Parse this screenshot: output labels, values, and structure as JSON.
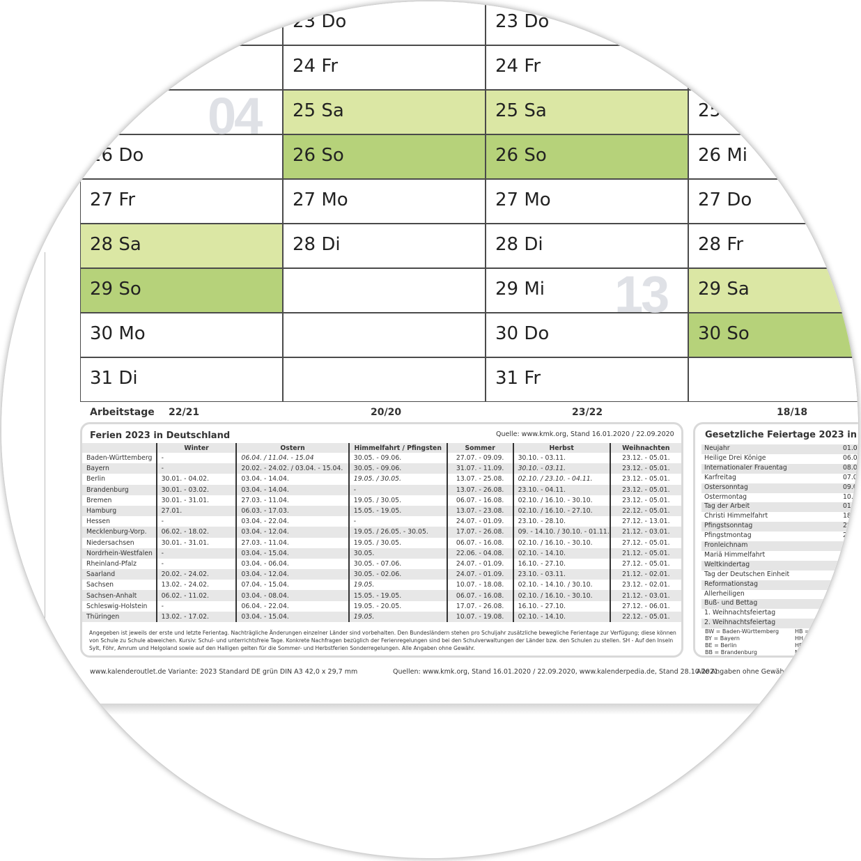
{
  "calendar": {
    "months": [
      {
        "cells": [
          {
            "l": "",
            "s": ""
          },
          {
            "l": "",
            "s": ""
          },
          {
            "l": "",
            "s": ""
          },
          {
            "l": "26 Do",
            "s": ""
          },
          {
            "l": "27 Fr",
            "s": ""
          },
          {
            "l": "28 Sa",
            "s": "sat"
          },
          {
            "l": "29 So",
            "s": "sun"
          },
          {
            "l": "30 Mo",
            "s": ""
          },
          {
            "l": "31 Di",
            "s": ""
          }
        ]
      },
      {
        "cells": [
          {
            "l": "23 Do",
            "s": ""
          },
          {
            "l": "24 Fr",
            "s": ""
          },
          {
            "l": "25 Sa",
            "s": "sat"
          },
          {
            "l": "26 So",
            "s": "sun"
          },
          {
            "l": "27 Mo",
            "s": ""
          },
          {
            "l": "28 Di",
            "s": ""
          },
          {
            "l": "",
            "s": ""
          },
          {
            "l": "",
            "s": ""
          },
          {
            "l": "",
            "s": ""
          }
        ]
      },
      {
        "cells": [
          {
            "l": "23 Do",
            "s": ""
          },
          {
            "l": "24 Fr",
            "s": ""
          },
          {
            "l": "25 Sa",
            "s": "sat"
          },
          {
            "l": "26 So",
            "s": "sun"
          },
          {
            "l": "27 Mo",
            "s": ""
          },
          {
            "l": "28 Di",
            "s": ""
          },
          {
            "l": "29 Mi",
            "s": ""
          },
          {
            "l": "30 Do",
            "s": ""
          },
          {
            "l": "31 Fr",
            "s": ""
          }
        ]
      },
      {
        "cells": [
          {
            "l": "",
            "s": ""
          },
          {
            "l": "",
            "s": ""
          },
          {
            "l": "25 Di",
            "s": ""
          },
          {
            "l": "26 Mi",
            "s": ""
          },
          {
            "l": "27 Do",
            "s": ""
          },
          {
            "l": "28 Fr",
            "s": ""
          },
          {
            "l": "29 Sa",
            "s": "sat"
          },
          {
            "l": "30 So",
            "s": "sun"
          },
          {
            "l": "",
            "s": ""
          }
        ]
      }
    ],
    "week_numbers": [
      "04",
      "13"
    ],
    "arbeitstage_label": "Arbeitstage",
    "arbeitstage": [
      "22/21",
      "20/20",
      "23/22",
      "18/18"
    ],
    "colors": {
      "saturday": "#dbe7a4",
      "sunday": "#b6d27a"
    }
  },
  "ferien": {
    "title": "Ferien 2023 in Deutschland",
    "source": "Quelle: www.kmk.org, Stand 16.01.2020 / 22.09.2020",
    "columns": [
      "",
      "Winter",
      "Ostern",
      "Himmelfahrt / Pfingsten",
      "Sommer",
      "Herbst",
      "Weihnachten"
    ],
    "rows": [
      [
        "Baden-Württemberg",
        "-",
        "06.04. / 11.04. - 15.04",
        "30.05. - 09.06.",
        "27.07. - 09.09.",
        "30.10. - 03.11.",
        "23.12. - 05.01."
      ],
      [
        "Bayern",
        "-",
        "20.02. - 24.02. / 03.04. - 15.04.",
        "30.05. - 09.06.",
        "31.07. - 11.09.",
        "30.10. - 03.11.",
        "23.12. - 05.01."
      ],
      [
        "Berlin",
        "30.01. - 04.02.",
        "03.04. - 14.04.",
        "19.05. / 30.05.",
        "13.07. - 25.08.",
        "02.10. / 23.10. - 04.11.",
        "23.12. - 05.01."
      ],
      [
        "Brandenburg",
        "30.01. - 03.02.",
        "03.04. - 14.04.",
        "-",
        "13.07. - 26.08.",
        "23.10. - 04.11.",
        "23.12. - 05.01."
      ],
      [
        "Bremen",
        "30.01. - 31.01.",
        "27.03. - 11.04.",
        "19.05. / 30.05.",
        "06.07. - 16.08.",
        "02.10. / 16.10. - 30.10.",
        "23.12. - 05.01."
      ],
      [
        "Hamburg",
        "27.01.",
        "06.03. - 17.03.",
        "15.05. - 19.05.",
        "13.07. - 23.08.",
        "02.10. / 16.10. - 27.10.",
        "22.12. - 05.01."
      ],
      [
        "Hessen",
        "-",
        "03.04. - 22.04.",
        "-",
        "24.07. - 01.09.",
        "23.10. - 28.10.",
        "27.12. - 13.01."
      ],
      [
        "Mecklenburg-Vorp.",
        "06.02. - 18.02.",
        "03.04. - 12.04.",
        "19.05. / 26.05. - 30.05.",
        "17.07. - 26.08.",
        "09. - 14.10. / 30.10. - 01.11.",
        "21.12. - 03.01."
      ],
      [
        "Niedersachsen",
        "30.01. - 31.01.",
        "27.03. - 11.04.",
        "19.05. / 30.05.",
        "06.07. - 16.08.",
        "02.10. / 16.10. - 30.10.",
        "27.12. - 05.01."
      ],
      [
        "Nordrhein-Westfalen",
        "-",
        "03.04. - 15.04.",
        "30.05.",
        "22.06. - 04.08.",
        "02.10. - 14.10.",
        "21.12. - 05.01."
      ],
      [
        "Rheinland-Pfalz",
        "-",
        "03.04. - 06.04.",
        "30.05. - 07.06.",
        "24.07. - 01.09.",
        "16.10. - 27.10.",
        "27.12. - 05.01."
      ],
      [
        "Saarland",
        "20.02. - 24.02.",
        "03.04. - 12.04.",
        "30.05. - 02.06.",
        "24.07. - 01.09.",
        "23.10. - 03.11.",
        "21.12. - 02.01."
      ],
      [
        "Sachsen",
        "13.02. - 24.02.",
        "07.04. - 15.04.",
        "19.05.",
        "10.07. - 18.08.",
        "02.10. - 14.10. / 30.10.",
        "23.12. - 02.01."
      ],
      [
        "Sachsen-Anhalt",
        "06.02. - 11.02.",
        "03.04. - 08.04.",
        "15.05. - 19.05.",
        "06.07. - 16.08.",
        "02.10. / 16.10. - 30.10.",
        "21.12. - 03.01."
      ],
      [
        "Schleswig-Holstein",
        "-",
        "06.04. - 22.04.",
        "19.05. - 20.05.",
        "17.07. - 26.08.",
        "16.10. - 27.10.",
        "27.12. - 06.01."
      ],
      [
        "Thüringen",
        "13.02. - 17.02.",
        "03.04. - 15.04.",
        "19.05.",
        "10.07. - 19.08.",
        "02.10. - 14.10.",
        "22.12. - 05.01."
      ]
    ],
    "note": "Angegeben ist jeweils der erste und letzte Ferientag. Nachträgliche Änderungen einzelner Länder sind vorbehalten. Den Bundesländern stehen pro Schuljahr zusätzliche bewegliche Ferientage zur Verfügung; diese können von Schule zu Schule abweichen. Kursiv: Schul- und unterrichtsfreie Tage. Konkrete Nachfragen bezüglich der Ferienregelungen sind bei den Schulverwaltungen der Länder bzw. den Schulen zu stellen. SH - Auf den Inseln Sylt, Föhr, Amrum und Helgoland sowie auf den Halligen gelten für die Sommer- und Herbstferien Sonderregelungen. Alle Angaben ohne Gewähr."
  },
  "feiertage": {
    "title": "Gesetzliche Feiertage 2023 in Deutschland",
    "items": [
      {
        "name": "Neujahr",
        "date": "01.01."
      },
      {
        "name": "Heilige Drei Könige",
        "date": "06.01."
      },
      {
        "name": "Internationaler Frauentag",
        "date": "08.03."
      },
      {
        "name": "Karfreitag",
        "date": "07.04."
      },
      {
        "name": "Ostersonntag",
        "date": "09.04."
      },
      {
        "name": "Ostermontag",
        "date": "10.04."
      },
      {
        "name": "Tag der Arbeit",
        "date": "01.05."
      },
      {
        "name": "Christi Himmelfahrt",
        "date": "18.05."
      },
      {
        "name": "Pfingstsonntag",
        "date": "28.05."
      },
      {
        "name": "Pfingstmontag",
        "date": "29.05."
      },
      {
        "name": "Fronleichnam",
        "date": "08.06."
      },
      {
        "name": "Mariä Himmelfahrt",
        "date": ""
      },
      {
        "name": "Weltkindertag",
        "date": ""
      },
      {
        "name": "Tag der Deutschen Einheit",
        "date": ""
      },
      {
        "name": "Reformationstag",
        "date": ""
      },
      {
        "name": "Allerheiligen",
        "date": ""
      },
      {
        "name": "Buß- und Bettag",
        "date": ""
      },
      {
        "name": "1. Weihnachtsfeiertag",
        "date": ""
      },
      {
        "name": "2. Weihnachtsfeiertag",
        "date": ""
      }
    ],
    "legend_left": [
      "BW  =  Baden-Württemberg",
      "BY  =  Bayern",
      "BE  =  Berlin",
      "BB  =  Brandenburg"
    ],
    "legend_right": [
      "HB  =",
      "HH",
      "HE",
      "M"
    ]
  },
  "footer": {
    "left": "www.kalenderoutlet.de   Variante:  2023 Standard  DE grün  DIN A3    42,0 x 29,7 mm",
    "middle": "Quellen: www.kmk.org, Stand 16.01.2020 / 22.09.2020, www.kalenderpedia.de, Stand 28.10.2021",
    "right": "Alle Angaben ohne Gewähr"
  }
}
